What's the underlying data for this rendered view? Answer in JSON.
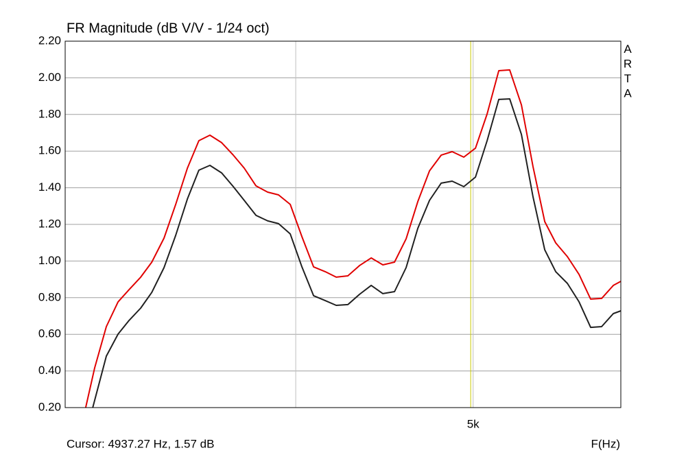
{
  "chart_data": {
    "type": "line",
    "title": "FR Magnitude (dB V/V - 1/24 oct)",
    "side_label": "ARTA",
    "xlabel": "F(Hz)",
    "cursor": {
      "label": "Cursor: 4937.27 Hz, 1.57 dB",
      "x": 4937.27,
      "color": "#c8c800"
    },
    "xscale": "log",
    "xlim": [
      608,
      10721
    ],
    "xticks": [
      {
        "value": 2000,
        "label": null
      },
      {
        "value": 5000,
        "label": "5k"
      }
    ],
    "ylim": [
      0.2,
      2.2
    ],
    "yticks": [
      {
        "value": 0.2,
        "label": "0.20"
      },
      {
        "value": 0.4,
        "label": "0.40"
      },
      {
        "value": 0.6,
        "label": "0.60"
      },
      {
        "value": 0.8,
        "label": "0.80"
      },
      {
        "value": 1.0,
        "label": "1.00"
      },
      {
        "value": 1.2,
        "label": "1.20"
      },
      {
        "value": 1.4,
        "label": "1.40"
      },
      {
        "value": 1.6,
        "label": "1.60"
      },
      {
        "value": 1.8,
        "label": "1.80"
      },
      {
        "value": 2.0,
        "label": "2.00"
      },
      {
        "value": 2.2,
        "label": "2.20"
      }
    ],
    "grid": true,
    "series": [
      {
        "color": "#e00000",
        "x": [
          676,
          708,
          752,
          799,
          846,
          898,
          951,
          1013,
          1076,
          1143,
          1213,
          1284,
          1364,
          1449,
          1533,
          1629,
          1730,
          1830,
          1944,
          2065,
          2193,
          2329,
          2465,
          2618,
          2780,
          2953,
          3137,
          3331,
          3537,
          3757,
          3991,
          4239,
          4486,
          4765,
          5060,
          5374,
          5708,
          6040,
          6416,
          6813,
          7237,
          7660,
          8135,
          8640,
          9173,
          9710,
          10314,
          10721
        ],
        "values": [
          0.2,
          0.417,
          0.642,
          0.777,
          0.844,
          0.912,
          0.994,
          1.125,
          1.309,
          1.507,
          1.657,
          1.687,
          1.646,
          1.578,
          1.507,
          1.41,
          1.376,
          1.361,
          1.309,
          1.133,
          0.968,
          0.942,
          0.912,
          0.919,
          0.975,
          1.017,
          0.979,
          0.994,
          1.121,
          1.324,
          1.492,
          1.578,
          1.597,
          1.567,
          1.616,
          1.803,
          2.039,
          2.043,
          1.852,
          1.515,
          1.215,
          1.099,
          1.024,
          0.927,
          0.792,
          0.796,
          0.867,
          0.889
        ]
      },
      {
        "color": "#202020",
        "x": [
          701,
          752,
          799,
          846,
          898,
          951,
          1013,
          1076,
          1143,
          1213,
          1284,
          1364,
          1449,
          1533,
          1629,
          1730,
          1830,
          1944,
          2065,
          2193,
          2329,
          2465,
          2618,
          2780,
          2953,
          3137,
          3331,
          3537,
          3757,
          3991,
          4239,
          4486,
          4765,
          5060,
          5374,
          5708,
          6040,
          6416,
          6813,
          7237,
          7660,
          8135,
          8640,
          9173,
          9710,
          10314,
          10721
        ],
        "values": [
          0.2,
          0.481,
          0.601,
          0.676,
          0.743,
          0.829,
          0.964,
          1.14,
          1.339,
          1.496,
          1.522,
          1.481,
          1.406,
          1.331,
          1.249,
          1.219,
          1.204,
          1.148,
          0.968,
          0.811,
          0.784,
          0.758,
          0.762,
          0.818,
          0.867,
          0.822,
          0.833,
          0.964,
          1.178,
          1.331,
          1.425,
          1.436,
          1.406,
          1.458,
          1.657,
          1.882,
          1.885,
          1.691,
          1.35,
          1.061,
          0.942,
          0.878,
          0.777,
          0.638,
          0.642,
          0.713,
          0.728
        ]
      }
    ]
  }
}
